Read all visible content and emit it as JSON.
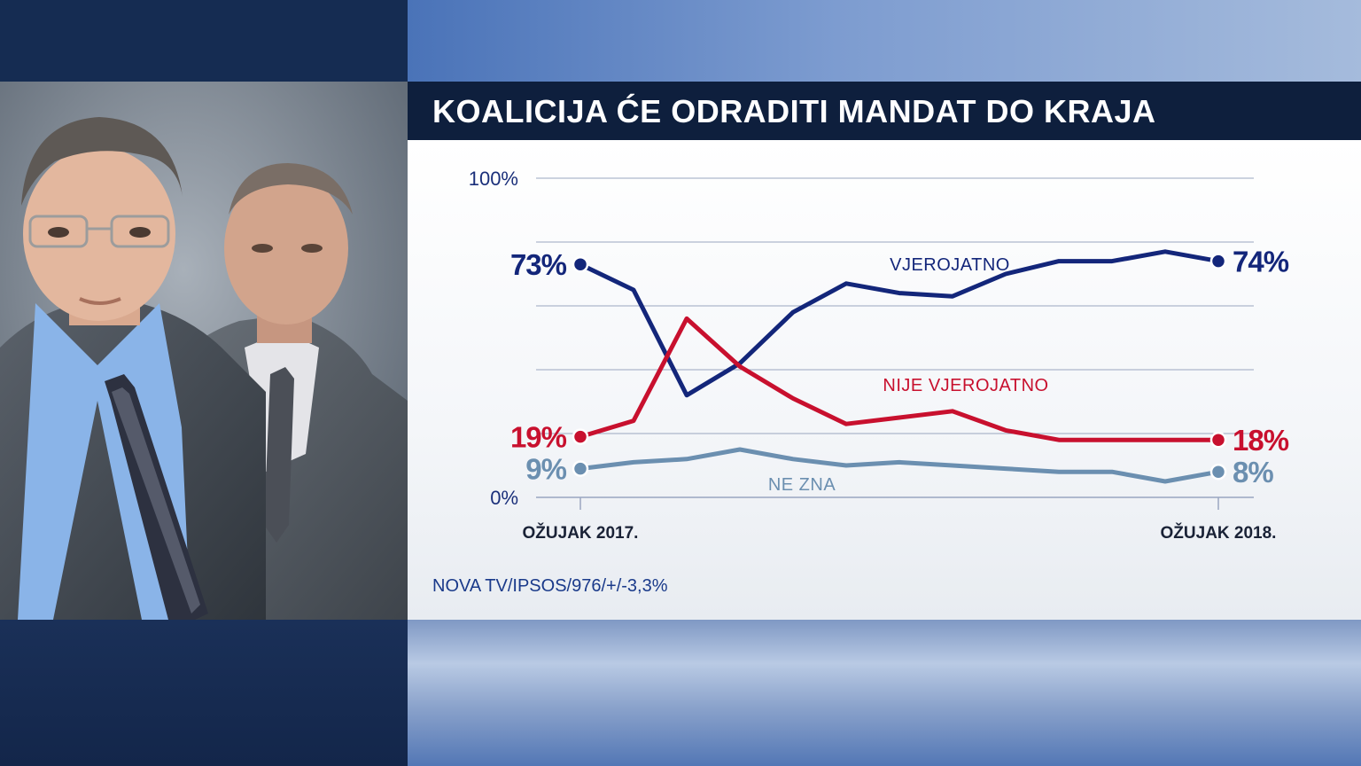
{
  "title": "KOALICIJA ĆE ODRADITI MANDAT DO KRAJA",
  "source": "NOVA TV/IPSOS/976/+/-3,3%",
  "colors": {
    "vjerojatno": "#13267a",
    "nije_vjerojatno": "#c8102e",
    "ne_zna": "#6b8fb0",
    "grid": "#9aa6c0",
    "axis_text": "#1a2f7a",
    "title_bar": "#0e1f3d"
  },
  "chart_data": {
    "type": "line",
    "title": "KOALICIJA ĆE ODRADITI MANDAT DO KRAJA",
    "ylim": [
      0,
      100
    ],
    "y_ticks": [
      "100%",
      "0%"
    ],
    "grid": true,
    "x_start_label": "OŽUJAK 2017.",
    "x_end_label": "OŽUJAK 2018.",
    "series": [
      {
        "name": "VJEROJATNO",
        "key": "vjerojatno",
        "start_label": "73%",
        "end_label": "74%",
        "values": [
          73,
          65,
          32,
          42,
          58,
          67,
          64,
          63,
          70,
          74,
          74,
          77,
          74
        ]
      },
      {
        "name": "NIJE VJEROJATNO",
        "key": "nije_vjerojatno",
        "start_label": "19%",
        "end_label": "18%",
        "values": [
          19,
          24,
          56,
          41,
          31,
          23,
          25,
          27,
          21,
          18,
          18,
          18,
          18
        ]
      },
      {
        "name": "NE ZNA",
        "key": "ne_zna",
        "start_label": "9%",
        "end_label": "8%",
        "values": [
          9,
          11,
          12,
          15,
          12,
          10,
          11,
          10,
          9,
          8,
          8,
          5,
          8
        ]
      }
    ]
  }
}
